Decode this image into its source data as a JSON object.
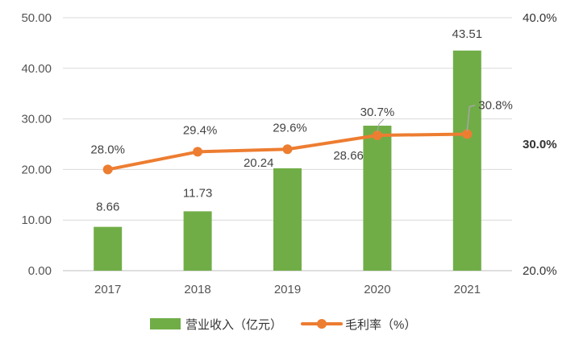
{
  "chart_data": {
    "type": "bar",
    "categories": [
      "2017",
      "2018",
      "2019",
      "2020",
      "2021"
    ],
    "series": [
      {
        "name": "营业收入（亿元）",
        "type": "bar",
        "axis": "left",
        "color": "#70ad47",
        "values": [
          8.66,
          11.73,
          20.24,
          28.66,
          43.51
        ],
        "labels": [
          "8.66",
          "11.73",
          "20.24",
          "28.66",
          "43.51"
        ]
      },
      {
        "name": "毛利率（%）",
        "type": "line",
        "axis": "right",
        "color": "#ed7d31",
        "values": [
          28.0,
          29.4,
          29.6,
          30.7,
          30.8
        ],
        "labels": [
          "28.0%",
          "29.4%",
          "29.6%",
          "30.7%",
          "30.8%"
        ]
      }
    ],
    "y_left": {
      "ylim": [
        0,
        50
      ],
      "ticks": [
        "0.00",
        "10.00",
        "20.00",
        "30.00",
        "40.00",
        "50.00"
      ]
    },
    "y_right": {
      "ylim": [
        20,
        40
      ],
      "ticks": [
        "20.0%",
        "30.0%",
        "40.0%"
      ]
    },
    "legend_position": "bottom-center",
    "grid": true
  }
}
